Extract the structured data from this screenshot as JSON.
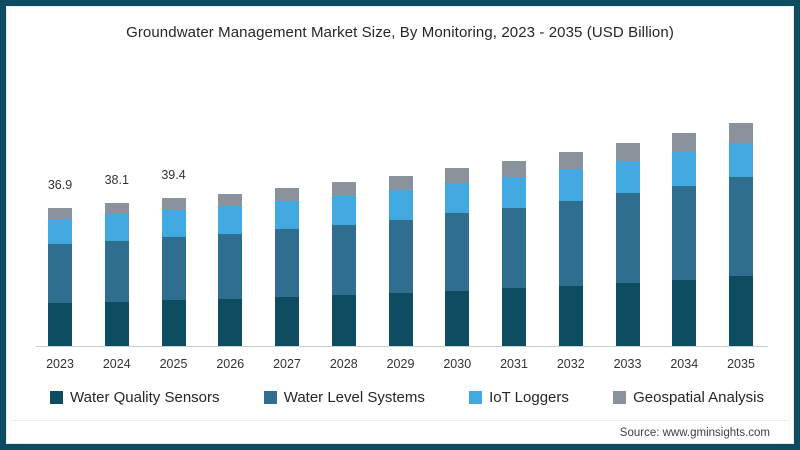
{
  "title": "Groundwater Management Market Size, By Monitoring, 2023 - 2035 (USD Billion)",
  "source": "Source: www.gminsights.com",
  "frame_border_color": "#0d4b60",
  "chart_data": {
    "type": "bar",
    "stacked": true,
    "title": "Groundwater Management Market Size, By Monitoring, 2023 - 2035 (USD Billion)",
    "xlabel": "",
    "ylabel": "USD Billion",
    "ylim": [
      0,
      65
    ],
    "grid": false,
    "legend_position": "bottom",
    "categories": [
      "2023",
      "2024",
      "2025",
      "2026",
      "2027",
      "2028",
      "2029",
      "2030",
      "2031",
      "2032",
      "2033",
      "2034",
      "2035"
    ],
    "series": [
      {
        "name": "Water Quality Sensors",
        "color": "#0e4c61",
        "values": [
          11.4,
          11.8,
          12.2,
          12.6,
          13.1,
          13.6,
          14.2,
          14.8,
          15.4,
          16.1,
          16.9,
          17.7,
          18.6
        ]
      },
      {
        "name": "Water Level Systems",
        "color": "#2f6e8e",
        "values": [
          15.7,
          16.3,
          16.9,
          17.4,
          18.0,
          18.8,
          19.4,
          20.6,
          21.5,
          22.7,
          23.8,
          25.1,
          26.5
        ]
      },
      {
        "name": "IoT Loggers",
        "color": "#41a9e0",
        "values": [
          6.9,
          7.0,
          7.2,
          7.3,
          7.5,
          7.7,
          7.9,
          8.1,
          8.3,
          8.5,
          8.7,
          8.9,
          9.1
        ]
      },
      {
        "name": "Geospatial Analysis",
        "color": "#8a929b",
        "values": [
          2.9,
          3.0,
          3.1,
          3.3,
          3.5,
          3.6,
          3.8,
          4.0,
          4.2,
          4.5,
          4.7,
          5.0,
          5.3
        ]
      }
    ],
    "totals": [
      36.9,
      38.1,
      39.4,
      40.6,
      42.1,
      43.7,
      45.3,
      47.5,
      49.4,
      51.8,
      54.1,
      56.7,
      59.5
    ],
    "bar_total_labels": [
      "36.9",
      "38.1",
      "39.4",
      "",
      "",
      "",
      "",
      "",
      "",
      "",
      "",
      "",
      ""
    ]
  }
}
